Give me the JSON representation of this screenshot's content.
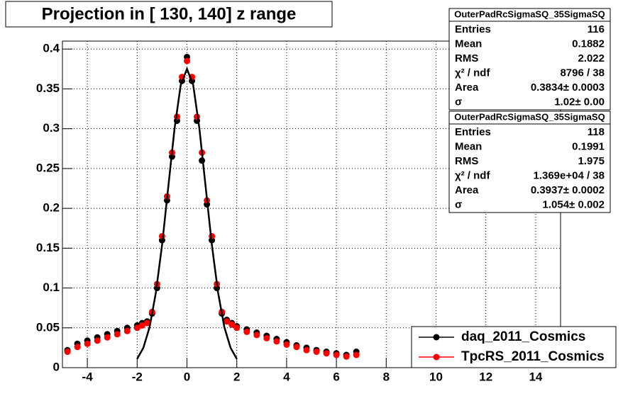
{
  "chart_data": {
    "type": "scatter",
    "title": "Projection in [ 130, 140] z range",
    "x": [
      -4.8,
      -4.4,
      -4.0,
      -3.6,
      -3.2,
      -2.8,
      -2.4,
      -2.0,
      -1.8,
      -1.6,
      -1.4,
      -1.2,
      -1.0,
      -0.8,
      -0.6,
      -0.4,
      -0.2,
      0,
      0.2,
      0.4,
      0.6,
      0.8,
      1.0,
      1.2,
      1.4,
      1.6,
      1.8,
      2.0,
      2.4,
      2.8,
      3.2,
      3.6,
      4.0,
      4.4,
      4.8,
      5.2,
      5.6,
      6.0,
      6.4,
      6.8
    ],
    "series": [
      {
        "name": "daq_2011_Cosmics",
        "color": "#000000",
        "values": [
          0.022,
          0.03,
          0.034,
          0.038,
          0.042,
          0.046,
          0.05,
          0.053,
          0.056,
          0.058,
          0.068,
          0.1,
          0.16,
          0.21,
          0.265,
          0.31,
          0.36,
          0.39,
          0.36,
          0.31,
          0.26,
          0.205,
          0.16,
          0.1,
          0.068,
          0.06,
          0.056,
          0.052,
          0.048,
          0.044,
          0.04,
          0.036,
          0.032,
          0.028,
          0.025,
          0.022,
          0.02,
          0.018,
          0.016,
          0.02
        ]
      },
      {
        "name": "TpcRS_2011_Cosmics",
        "color": "#ff0000",
        "values": [
          0.02,
          0.026,
          0.03,
          0.034,
          0.038,
          0.042,
          0.046,
          0.05,
          0.053,
          0.056,
          0.07,
          0.105,
          0.165,
          0.215,
          0.27,
          0.315,
          0.365,
          0.385,
          0.365,
          0.315,
          0.27,
          0.21,
          0.165,
          0.105,
          0.07,
          0.058,
          0.054,
          0.05,
          0.045,
          0.041,
          0.037,
          0.033,
          0.029,
          0.026,
          0.022,
          0.02,
          0.018,
          0.016,
          0.014,
          0.016
        ]
      }
    ],
    "fit": {
      "color": "#000000",
      "x": [
        -2,
        -1.75,
        -1.5,
        -1.25,
        -1,
        -0.75,
        -0.5,
        -0.25,
        0,
        0.25,
        0.5,
        0.75,
        1,
        1.25,
        1.5,
        1.75,
        2
      ],
      "values": [
        0.011,
        0.025,
        0.051,
        0.094,
        0.154,
        0.227,
        0.3,
        0.355,
        0.375,
        0.355,
        0.3,
        0.227,
        0.154,
        0.094,
        0.051,
        0.025,
        0.011
      ]
    },
    "xlim": [
      -5,
      15
    ],
    "ylim": [
      0,
      0.41
    ],
    "xticks": [
      -4,
      -2,
      0,
      2,
      4,
      6,
      8,
      10,
      12,
      14
    ],
    "yticks": [
      0,
      0.05,
      0.1,
      0.15,
      0.2,
      0.25,
      0.3,
      0.35,
      0.4
    ],
    "grid": true,
    "legend_position": "bottom-right",
    "stats": [
      {
        "title": "OuterPadRcSigmaSQ_35SigmaSQ",
        "rows": [
          {
            "label": "Entries",
            "value": "116"
          },
          {
            "label": "Mean",
            "value": "0.1882"
          },
          {
            "label": "RMS",
            "value": "2.022"
          },
          {
            "label": "χ² / ndf",
            "value": "8796 / 38"
          },
          {
            "label": "Area",
            "value": "0.3834± 0.0003"
          },
          {
            "label": "σ",
            "value": "1.02± 0.00"
          }
        ]
      },
      {
        "title": "OuterPadRcSigmaSQ_35SigmaSQ",
        "rows": [
          {
            "label": "Entries",
            "value": "118"
          },
          {
            "label": "Mean",
            "value": "0.1991"
          },
          {
            "label": "RMS",
            "value": "1.975"
          },
          {
            "label": "χ² / ndf",
            "value": "1.369e+04 / 38"
          },
          {
            "label": "Area",
            "value": "0.3937± 0.0002"
          },
          {
            "label": "σ",
            "value": "1.054± 0.002"
          }
        ]
      }
    ]
  }
}
